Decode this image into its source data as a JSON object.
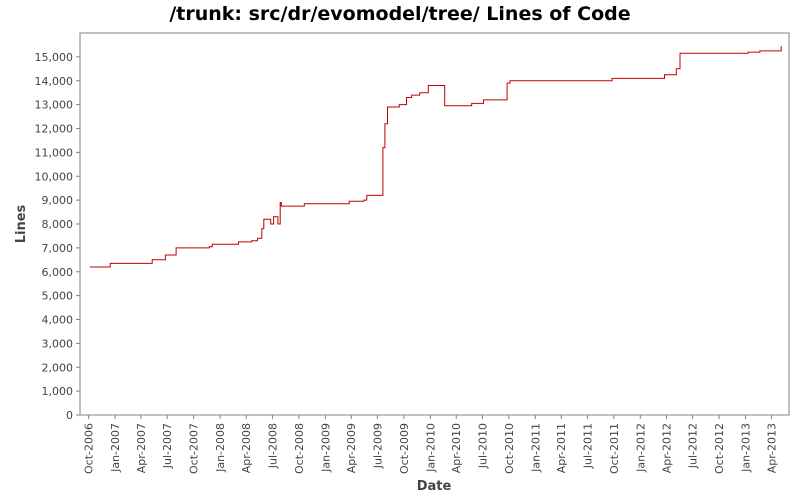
{
  "chart_data": {
    "type": "line",
    "title": "/trunk: src/dr/evomodel/tree/ Lines of Code",
    "xlabel": "Date",
    "ylabel": "Lines",
    "xlim": [
      "2006-09-01",
      "2013-06-01"
    ],
    "ylim": [
      0,
      16000
    ],
    "grid": false,
    "legend": "none",
    "line_color": "#c00000",
    "y_ticks": [
      0,
      1000,
      2000,
      3000,
      4000,
      5000,
      6000,
      7000,
      8000,
      9000,
      10000,
      11000,
      12000,
      13000,
      14000,
      15000
    ],
    "y_tick_labels": [
      "0",
      "1,000",
      "2,000",
      "3,000",
      "4,000",
      "5,000",
      "6,000",
      "7,000",
      "8,000",
      "9,000",
      "10,000",
      "11,000",
      "12,000",
      "13,000",
      "14,000",
      "15,000"
    ],
    "x_ticks": [
      "2006-10-01",
      "2007-01-01",
      "2007-04-01",
      "2007-07-01",
      "2007-10-01",
      "2008-01-01",
      "2008-04-01",
      "2008-07-01",
      "2008-10-01",
      "2009-01-01",
      "2009-04-01",
      "2009-07-01",
      "2009-10-01",
      "2010-01-01",
      "2010-04-01",
      "2010-07-01",
      "2010-10-01",
      "2011-01-01",
      "2011-04-01",
      "2011-07-01",
      "2011-10-01",
      "2012-01-01",
      "2012-04-01",
      "2012-07-01",
      "2012-10-01",
      "2013-01-01",
      "2013-04-01"
    ],
    "x_tick_labels": [
      "Oct-2006",
      "Jan-2007",
      "Apr-2007",
      "Jul-2007",
      "Oct-2007",
      "Jan-2008",
      "Apr-2008",
      "Jul-2008",
      "Oct-2008",
      "Jan-2009",
      "Apr-2009",
      "Jul-2009",
      "Oct-2009",
      "Jan-2010",
      "Apr-2010",
      "Jul-2010",
      "Oct-2010",
      "Jan-2011",
      "Apr-2011",
      "Jul-2011",
      "Oct-2011",
      "Jan-2012",
      "Apr-2012",
      "Jul-2012",
      "Oct-2012",
      "Jan-2013",
      "Apr-2013"
    ],
    "series": [
      {
        "points": [
          [
            "2006-10-05",
            6200
          ],
          [
            "2006-12-15",
            6350
          ],
          [
            "2007-05-10",
            6500
          ],
          [
            "2007-06-25",
            6700
          ],
          [
            "2007-08-01",
            7000
          ],
          [
            "2007-11-25",
            7050
          ],
          [
            "2007-12-05",
            7150
          ],
          [
            "2008-03-05",
            7250
          ],
          [
            "2008-04-20",
            7300
          ],
          [
            "2008-05-10",
            7400
          ],
          [
            "2008-05-25",
            7800
          ],
          [
            "2008-06-01",
            8200
          ],
          [
            "2008-06-25",
            8000
          ],
          [
            "2008-07-05",
            8300
          ],
          [
            "2008-07-20",
            8000
          ],
          [
            "2008-07-28",
            8900
          ],
          [
            "2008-08-01",
            8750
          ],
          [
            "2008-10-20",
            8850
          ],
          [
            "2009-03-25",
            8950
          ],
          [
            "2009-05-15",
            9000
          ],
          [
            "2009-05-25",
            9200
          ],
          [
            "2009-07-20",
            11200
          ],
          [
            "2009-07-27",
            12200
          ],
          [
            "2009-08-05",
            12900
          ],
          [
            "2009-09-15",
            13000
          ],
          [
            "2009-10-10",
            13300
          ],
          [
            "2009-10-28",
            13400
          ],
          [
            "2009-11-25",
            13500
          ],
          [
            "2009-12-25",
            13800
          ],
          [
            "2010-02-20",
            12950
          ],
          [
            "2010-05-25",
            13050
          ],
          [
            "2010-07-05",
            13200
          ],
          [
            "2010-09-25",
            13900
          ],
          [
            "2010-10-05",
            14000
          ],
          [
            "2011-09-25",
            14100
          ],
          [
            "2012-03-10",
            14100
          ],
          [
            "2012-03-25",
            14250
          ],
          [
            "2012-05-05",
            14500
          ],
          [
            "2012-05-18",
            15150
          ],
          [
            "2013-01-10",
            15200
          ],
          [
            "2013-02-20",
            15250
          ],
          [
            "2013-05-01",
            15250
          ],
          [
            "2013-05-05",
            15450
          ]
        ]
      }
    ]
  }
}
